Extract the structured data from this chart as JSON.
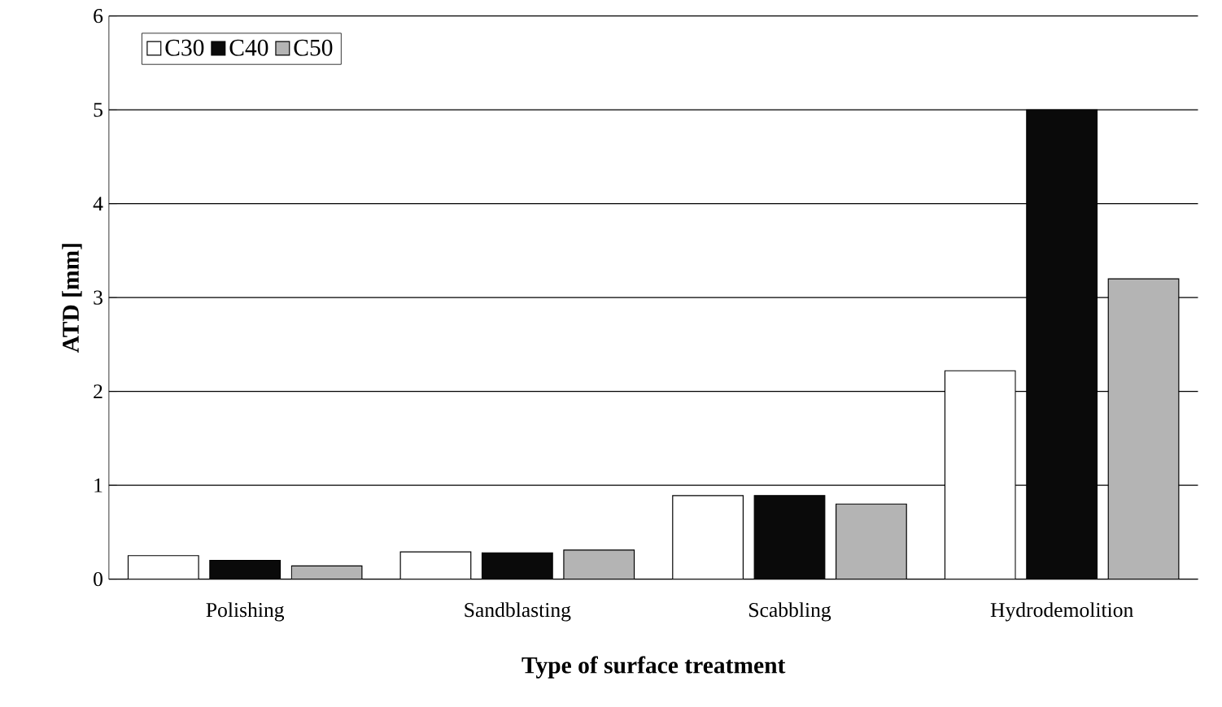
{
  "chart_data": {
    "type": "bar",
    "xlabel": "Type of surface treatment",
    "ylabel": "ATD [mm]",
    "categories": [
      "Polishing",
      "Sandblasting",
      "Scabbling",
      "Hydrodemolition"
    ],
    "series": [
      {
        "name": "C30",
        "color": "#ffffff",
        "values": [
          0.25,
          0.29,
          0.89,
          2.22
        ]
      },
      {
        "name": "C40",
        "color": "#0a0a0a",
        "values": [
          0.2,
          0.28,
          0.89,
          5.0
        ]
      },
      {
        "name": "C50",
        "color": "#b4b4b4",
        "values": [
          0.14,
          0.31,
          0.8,
          3.2
        ]
      }
    ],
    "ylim": [
      0,
      6
    ],
    "yticks": [
      0,
      1,
      2,
      3,
      4,
      5,
      6
    ],
    "grid": "y",
    "legend": "top left"
  }
}
